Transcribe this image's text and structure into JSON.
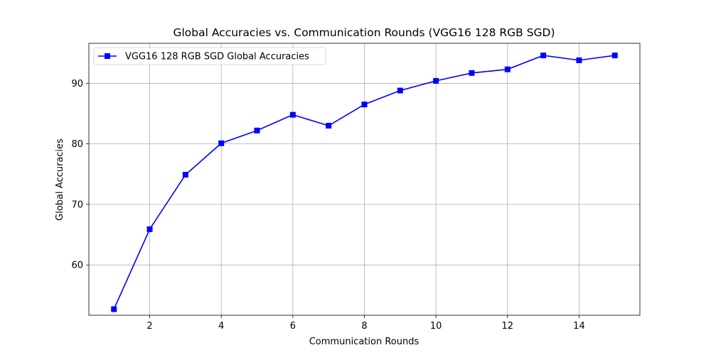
{
  "chart_data": {
    "type": "line",
    "title": "Global Accuracies vs. Communication Rounds (VGG16 128 RGB SGD)",
    "xlabel": "Communication Rounds",
    "ylabel": "Global Accuracies",
    "xlim": [
      0.3,
      15.7
    ],
    "ylim": [
      51.7,
      96.6
    ],
    "x_ticks": [
      2,
      4,
      6,
      8,
      10,
      12,
      14
    ],
    "y_ticks": [
      60,
      70,
      80,
      90
    ],
    "grid": true,
    "legend_position": "top-left",
    "series": [
      {
        "name": "VGG16 128 RGB SGD Global Accuracies",
        "color": "#0000ff",
        "marker": "square",
        "x": [
          1,
          2,
          3,
          4,
          5,
          6,
          7,
          8,
          9,
          10,
          11,
          12,
          13,
          14,
          15
        ],
        "y": [
          52.7,
          65.9,
          74.9,
          80.1,
          82.2,
          84.8,
          83.0,
          86.5,
          88.8,
          90.4,
          91.7,
          92.3,
          94.6,
          93.8,
          94.6
        ]
      }
    ]
  }
}
